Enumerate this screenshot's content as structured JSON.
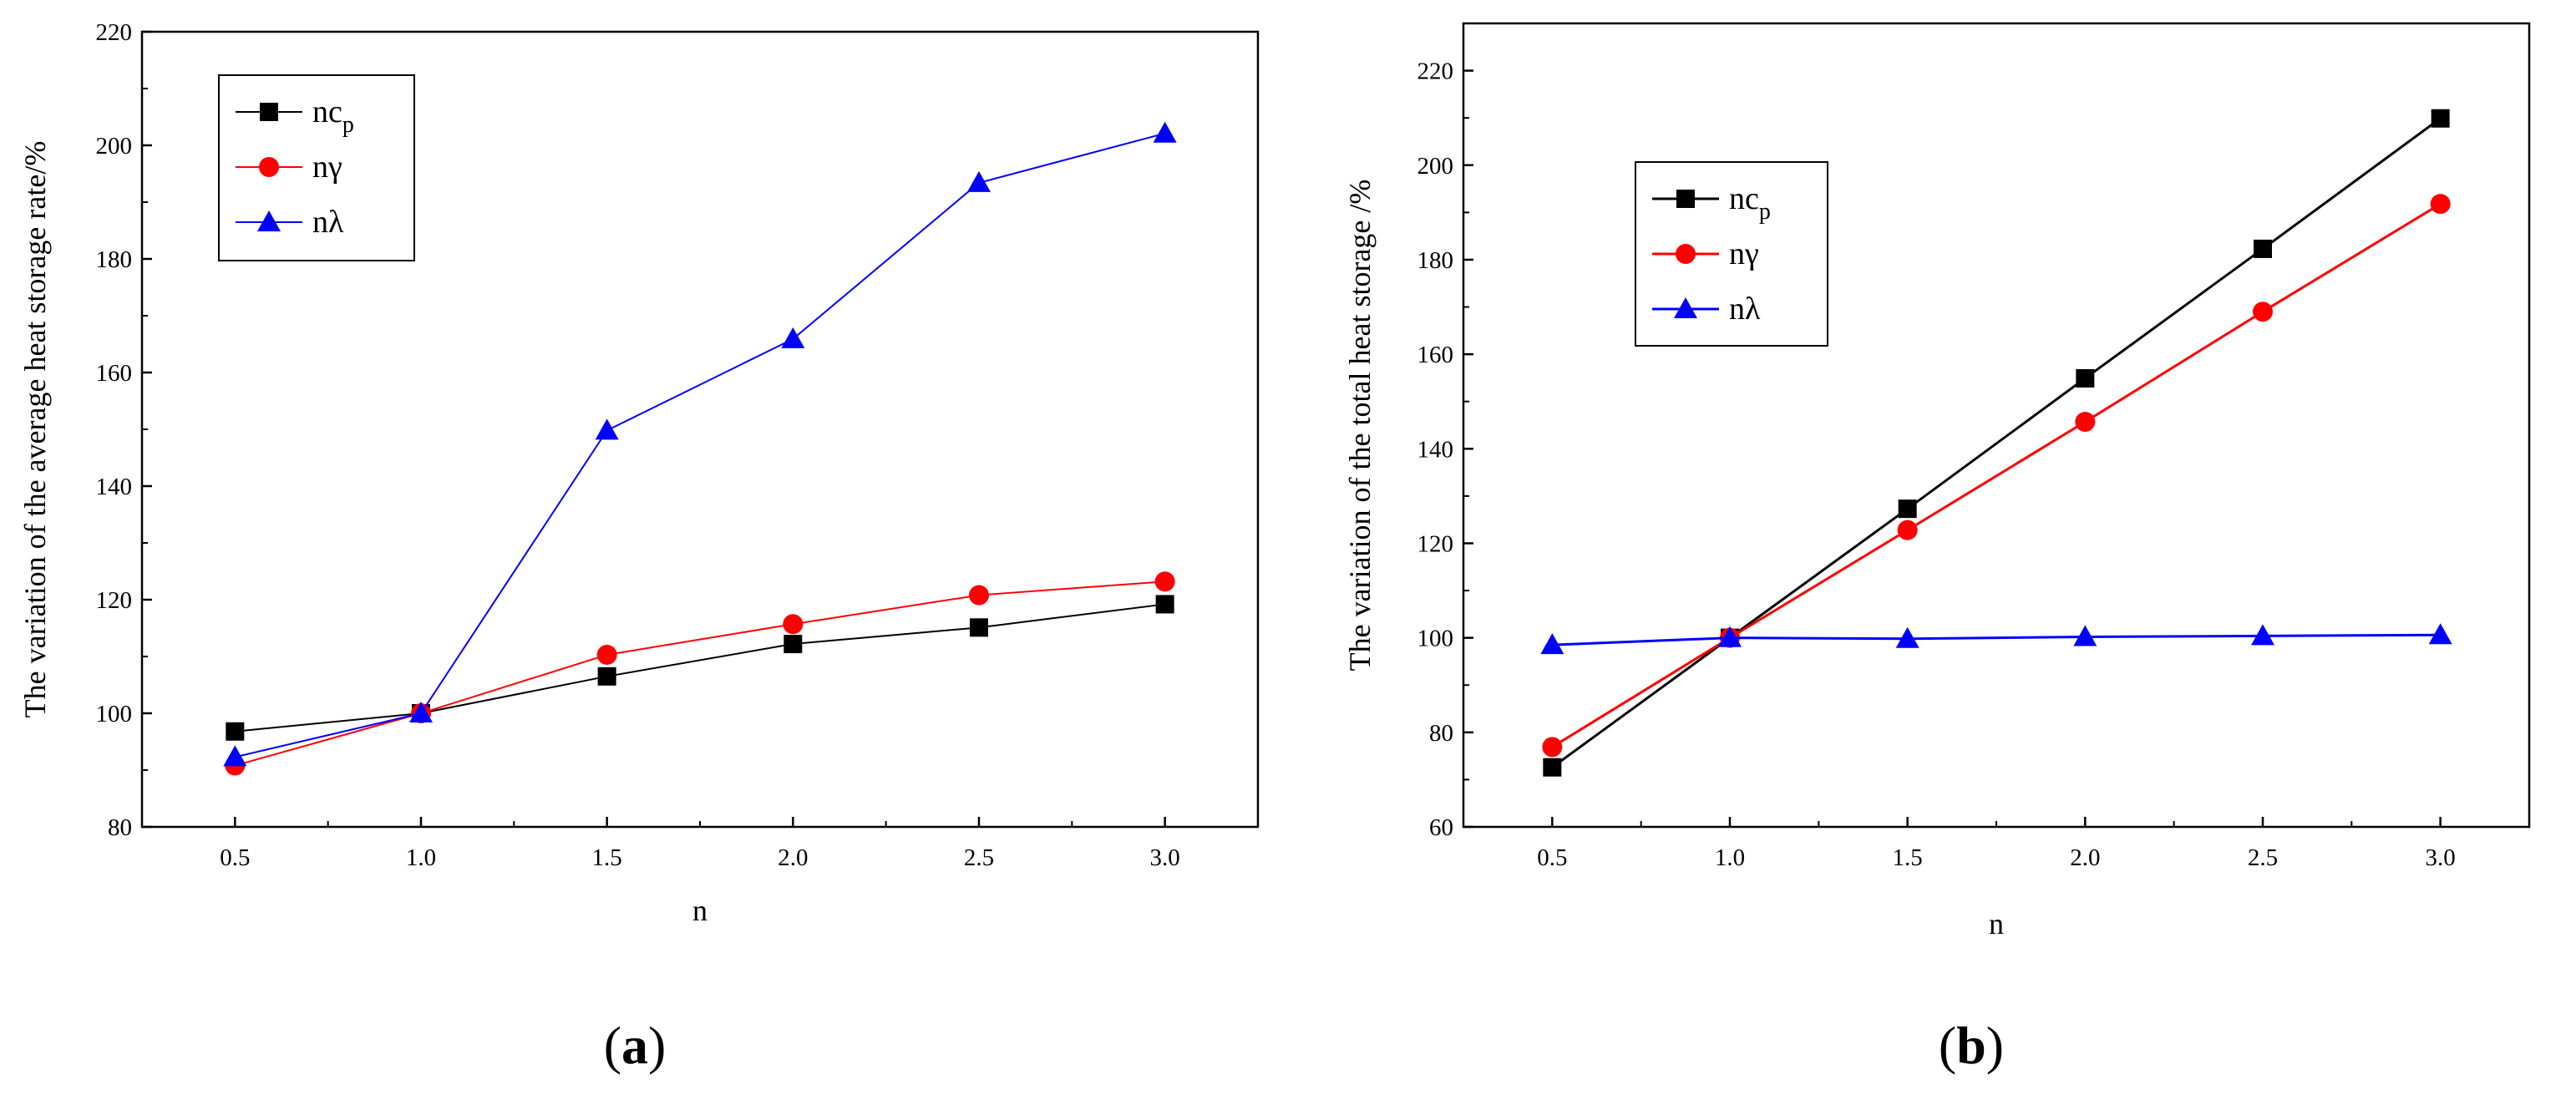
{
  "chart_data": [
    {
      "type": "line",
      "panel_label": "a",
      "xlabel": "n",
      "ylabel": "The variation of the average heat storage rate/%",
      "x": [
        0.5,
        1.0,
        1.5,
        2.0,
        2.5,
        3.0
      ],
      "x_tick_labels": [
        "0.5",
        "1.0",
        "1.5",
        "2.0",
        "2.5",
        "3.0"
      ],
      "xlim": [
        0.25,
        3.25
      ],
      "ylim": [
        80,
        220
      ],
      "y_ticks": [
        80,
        100,
        120,
        140,
        160,
        180,
        200,
        220
      ],
      "legend_position": "top-left",
      "series": [
        {
          "name": "nc",
          "subscript": "p",
          "color": "#000000",
          "marker": "square",
          "values": [
            96.8,
            100.0,
            106.5,
            112.2,
            115.1,
            119.2
          ]
        },
        {
          "name": "nγ",
          "subscript": "",
          "color": "#ff0000",
          "marker": "circle",
          "values": [
            90.8,
            100.0,
            110.3,
            115.7,
            120.8,
            123.2
          ]
        },
        {
          "name": "nλ",
          "subscript": "",
          "color": "#0000ff",
          "marker": "triangle",
          "values": [
            92.3,
            100.0,
            149.8,
            165.9,
            193.4,
            202.1
          ]
        }
      ]
    },
    {
      "type": "line",
      "panel_label": "b",
      "xlabel": "n",
      "ylabel": "The variation of the total heat storage /%",
      "x": [
        0.5,
        1.0,
        1.5,
        2.0,
        2.5,
        3.0
      ],
      "x_tick_labels": [
        "0.5",
        "1.0",
        "1.5",
        "2.0",
        "2.5",
        "3.0"
      ],
      "xlim": [
        0.25,
        3.25
      ],
      "ylim": [
        60,
        230
      ],
      "y_ticks": [
        60,
        80,
        100,
        120,
        140,
        160,
        180,
        200,
        220
      ],
      "legend_position": "upper-left",
      "series": [
        {
          "name": "nc",
          "subscript": "p",
          "color": "#000000",
          "marker": "square",
          "values": [
            72.6,
            100.0,
            127.3,
            154.9,
            182.3,
            209.9
          ]
        },
        {
          "name": "nγ",
          "subscript": "",
          "color": "#ff0000",
          "marker": "circle",
          "values": [
            76.9,
            100.0,
            122.8,
            145.7,
            169.0,
            191.8
          ]
        },
        {
          "name": "nλ",
          "subscript": "",
          "color": "#0000ff",
          "marker": "triangle",
          "values": [
            98.5,
            100.0,
            99.8,
            100.2,
            100.4,
            100.6
          ]
        }
      ]
    }
  ]
}
